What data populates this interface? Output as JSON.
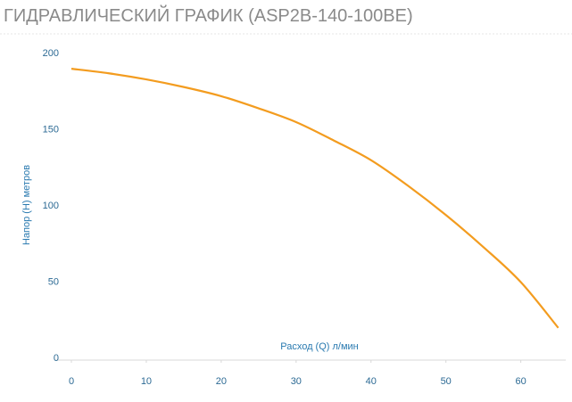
{
  "chart_data": {
    "type": "line",
    "title": "ГИДРАВЛИЧЕСКИЙ ГРАФИК (ASP2B-140-100BE)",
    "x_label": "Расход (Q) л/мин",
    "y_label": "Напор (H) метров",
    "x": [
      0,
      5,
      10,
      15,
      20,
      25,
      30,
      35,
      40,
      45,
      50,
      55,
      60,
      65
    ],
    "values": [
      190,
      187,
      183,
      178,
      172,
      164,
      155,
      143,
      130,
      113,
      94,
      73,
      50,
      20
    ],
    "color": "#f39c1f",
    "xlim": [
      0,
      66
    ],
    "xticks": [
      0,
      10,
      20,
      30,
      40,
      50,
      60
    ],
    "ylim": [
      0,
      200
    ],
    "yticks": [
      0,
      50,
      100,
      150,
      200
    ],
    "grid": false
  }
}
